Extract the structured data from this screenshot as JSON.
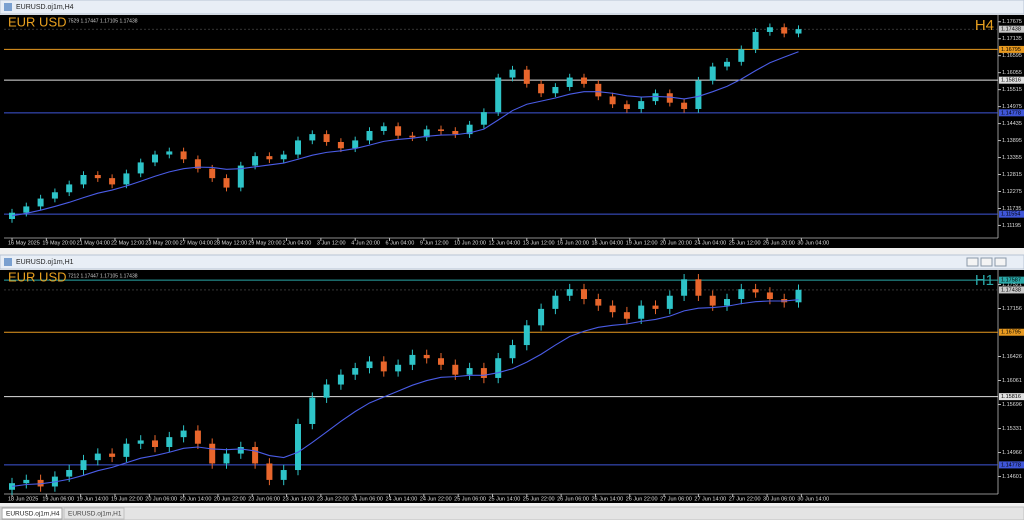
{
  "tabs": [
    "EURUSD.oj1m,H4",
    "EURUSD.oj1m,H1"
  ],
  "chart_data": [
    {
      "type": "candlestick",
      "window_title": "EURUSD.oj1m,H4",
      "symbol": "EUR USD",
      "timeframe": "H4",
      "timeframe_color": "#e8a020",
      "info": "7529 1.17447 1.17105 1.17438",
      "up_color": "#2ec4c8",
      "down_color": "#e8662c",
      "ma_color": "#4a5ce6",
      "ylim": [
        1.10859,
        1.17858
      ],
      "yticks": [
        1.17675,
        1.17135,
        1.16595,
        1.16055,
        1.15515,
        1.14975,
        1.14435,
        1.13895,
        1.13355,
        1.12815,
        1.12275,
        1.11735,
        1.11195
      ],
      "current": 1.17438,
      "levels": [
        {
          "value": 1.16795,
          "color": "#e89a20"
        },
        {
          "value": 1.15816,
          "color": "#e0e0e0"
        },
        {
          "value": 1.14778,
          "color": "#3f56d8"
        },
        {
          "value": 1.11554,
          "color": "#3f56d8"
        }
      ],
      "xticks": [
        {
          "value": 0,
          "label": "16 May 2025"
        },
        {
          "value": 2.4,
          "label": "19 May 20:00"
        },
        {
          "value": 4.8,
          "label": "21 May 04:00"
        },
        {
          "value": 7.2,
          "label": "22 May 12:00"
        },
        {
          "value": 9.6,
          "label": "23 May 20:00"
        },
        {
          "value": 12,
          "label": "27 May 04:00"
        },
        {
          "value": 14.4,
          "label": "28 May 12:00"
        },
        {
          "value": 16.8,
          "label": "29 May 20:00"
        },
        {
          "value": 19.2,
          "label": "2 Jun 04:00"
        },
        {
          "value": 21.6,
          "label": "3 Jun 12:00"
        },
        {
          "value": 24,
          "label": "4 Jun 20:00"
        },
        {
          "value": 26.4,
          "label": "6 Jun 04:00"
        },
        {
          "value": 28.8,
          "label": "9 Jun 12:00"
        },
        {
          "value": 31.2,
          "label": "10 Jun 20:00"
        },
        {
          "value": 33.6,
          "label": "12 Jun 04:00"
        },
        {
          "value": 36,
          "label": "13 Jun 12:00"
        },
        {
          "value": 38.4,
          "label": "16 Jun 20:00"
        },
        {
          "value": 40.8,
          "label": "18 Jun 04:00"
        },
        {
          "value": 43.2,
          "label": "19 Jun 12:00"
        },
        {
          "value": 45.6,
          "label": "20 Jun 20:00"
        },
        {
          "value": 48,
          "label": "24 Jun 04:00"
        },
        {
          "value": 50.4,
          "label": "25 Jun 12:00"
        },
        {
          "value": 52.8,
          "label": "26 Jun 20:00"
        },
        {
          "value": 55.2,
          "label": "30 Jun 04:00"
        }
      ],
      "ohlc": [
        [
          1.114,
          1.1172,
          1.1128,
          1.116
        ],
        [
          1.116,
          1.1192,
          1.1148,
          1.118
        ],
        [
          1.118,
          1.1217,
          1.1168,
          1.1205
        ],
        [
          1.1205,
          1.1237,
          1.1193,
          1.1225
        ],
        [
          1.1225,
          1.1262,
          1.1213,
          1.125
        ],
        [
          1.125,
          1.1292,
          1.1238,
          1.128
        ],
        [
          1.128,
          1.1292,
          1.1258,
          1.127
        ],
        [
          1.127,
          1.1282,
          1.1238,
          1.125
        ],
        [
          1.125,
          1.1297,
          1.1238,
          1.1285
        ],
        [
          1.1285,
          1.1332,
          1.1273,
          1.132
        ],
        [
          1.132,
          1.1357,
          1.1308,
          1.1345
        ],
        [
          1.1345,
          1.1367,
          1.1333,
          1.1355
        ],
        [
          1.1355,
          1.1367,
          1.1318,
          1.133
        ],
        [
          1.133,
          1.1342,
          1.1288,
          1.13
        ],
        [
          1.13,
          1.1312,
          1.1258,
          1.127
        ],
        [
          1.127,
          1.1282,
          1.1228,
          1.124
        ],
        [
          1.124,
          1.1322,
          1.1228,
          1.131
        ],
        [
          1.131,
          1.1352,
          1.1298,
          1.134
        ],
        [
          1.134,
          1.1352,
          1.1318,
          1.133
        ],
        [
          1.133,
          1.1357,
          1.1318,
          1.1345
        ],
        [
          1.1345,
          1.1402,
          1.1333,
          1.139
        ],
        [
          1.139,
          1.1422,
          1.1378,
          1.141
        ],
        [
          1.141,
          1.1422,
          1.1373,
          1.1385
        ],
        [
          1.1385,
          1.1397,
          1.1353,
          1.1365
        ],
        [
          1.1365,
          1.1402,
          1.1353,
          1.139
        ],
        [
          1.139,
          1.1432,
          1.1378,
          1.142
        ],
        [
          1.142,
          1.1447,
          1.1408,
          1.1435
        ],
        [
          1.1435,
          1.1447,
          1.1393,
          1.1405
        ],
        [
          1.1405,
          1.1417,
          1.1388,
          1.14
        ],
        [
          1.14,
          1.1437,
          1.1388,
          1.1425
        ],
        [
          1.1425,
          1.1437,
          1.1408,
          1.142
        ],
        [
          1.142,
          1.1432,
          1.1398,
          1.141
        ],
        [
          1.141,
          1.1452,
          1.1398,
          1.144
        ],
        [
          1.144,
          1.1492,
          1.1428,
          1.148
        ],
        [
          1.148,
          1.1602,
          1.1468,
          1.159
        ],
        [
          1.159,
          1.1627,
          1.1578,
          1.1615
        ],
        [
          1.1615,
          1.1627,
          1.1558,
          1.157
        ],
        [
          1.157,
          1.1582,
          1.1528,
          1.154
        ],
        [
          1.154,
          1.1572,
          1.1528,
          1.156
        ],
        [
          1.156,
          1.1602,
          1.1548,
          1.159
        ],
        [
          1.159,
          1.1602,
          1.1558,
          1.157
        ],
        [
          1.157,
          1.1582,
          1.1518,
          1.153
        ],
        [
          1.153,
          1.1542,
          1.1493,
          1.1505
        ],
        [
          1.1505,
          1.1517,
          1.1478,
          1.149
        ],
        [
          1.149,
          1.1527,
          1.1478,
          1.1515
        ],
        [
          1.1515,
          1.1552,
          1.1503,
          1.154
        ],
        [
          1.154,
          1.1552,
          1.1498,
          1.151
        ],
        [
          1.151,
          1.1522,
          1.1478,
          1.149
        ],
        [
          1.149,
          1.1592,
          1.1478,
          1.158
        ],
        [
          1.158,
          1.1637,
          1.1568,
          1.1625
        ],
        [
          1.1625,
          1.1652,
          1.1613,
          1.164
        ],
        [
          1.164,
          1.1692,
          1.1628,
          1.168
        ],
        [
          1.168,
          1.1747,
          1.1668,
          1.1735
        ],
        [
          1.1735,
          1.1762,
          1.1723,
          1.175
        ],
        [
          1.175,
          1.1762,
          1.1718,
          1.173
        ],
        [
          1.173,
          1.1756,
          1.1718,
          1.1744
        ]
      ],
      "ma": [
        1.115,
        1.1158,
        1.1168,
        1.118,
        1.1193,
        1.1208,
        1.1222,
        1.1232,
        1.1245,
        1.126,
        1.1276,
        1.129,
        1.13,
        1.1305,
        1.1304,
        1.1298,
        1.13,
        1.1306,
        1.1312,
        1.1318,
        1.133,
        1.1343,
        1.1352,
        1.1357,
        1.1364,
        1.1375,
        1.1387,
        1.1393,
        1.1397,
        1.1403,
        1.1407,
        1.1408,
        1.1414,
        1.1426,
        1.1455,
        1.1485,
        1.1505,
        1.1515,
        1.1525,
        1.1537,
        1.1545,
        1.1545,
        1.154,
        1.1532,
        1.1528,
        1.153,
        1.1528,
        1.1522,
        1.153,
        1.1545,
        1.1562,
        1.1585,
        1.1612,
        1.1637,
        1.1655,
        1.1672
      ]
    },
    {
      "type": "candlestick",
      "window_title": "EURUSD.oj1m,H1",
      "symbol": "EUR USD",
      "timeframe": "H1",
      "timeframe_color": "#2aa7a7",
      "info": "7212 1.17447 1.17105 1.17438",
      "up_color": "#2ec4c8",
      "down_color": "#e8662c",
      "ma_color": "#4a5ce6",
      "ylim": [
        1.14366,
        1.17726
      ],
      "yticks": [
        1.17521,
        1.17156,
        1.16426,
        1.16061,
        1.15696,
        1.15331,
        1.14966,
        1.14601
      ],
      "current": 1.17438,
      "levels": [
        {
          "value": 1.17587,
          "color": "#2aa7a7"
        },
        {
          "value": 1.16795,
          "color": "#e89a20"
        },
        {
          "value": 1.15816,
          "color": "#e0e0e0"
        },
        {
          "value": 1.14778,
          "color": "#3f56d8"
        }
      ],
      "xticks": [
        {
          "value": 0,
          "label": "18 Jun 2025"
        },
        {
          "value": 2.4,
          "label": "19 Jun 06:00"
        },
        {
          "value": 4.8,
          "label": "19 Jun 14:00"
        },
        {
          "value": 7.2,
          "label": "19 Jun 22:00"
        },
        {
          "value": 9.6,
          "label": "20 Jun 06:00"
        },
        {
          "value": 12,
          "label": "20 Jun 14:00"
        },
        {
          "value": 14.4,
          "label": "20 Jun 22:00"
        },
        {
          "value": 16.8,
          "label": "23 Jun 06:00"
        },
        {
          "value": 19.2,
          "label": "23 Jun 14:00"
        },
        {
          "value": 21.6,
          "label": "23 Jun 22:00"
        },
        {
          "value": 24,
          "label": "24 Jun 06:00"
        },
        {
          "value": 26.4,
          "label": "24 Jun 14:00"
        },
        {
          "value": 28.8,
          "label": "24 Jun 22:00"
        },
        {
          "value": 31.2,
          "label": "25 Jun 06:00"
        },
        {
          "value": 33.6,
          "label": "25 Jun 14:00"
        },
        {
          "value": 36,
          "label": "25 Jun 22:00"
        },
        {
          "value": 38.4,
          "label": "26 Jun 06:00"
        },
        {
          "value": 40.8,
          "label": "26 Jun 14:00"
        },
        {
          "value": 43.2,
          "label": "26 Jun 22:00"
        },
        {
          "value": 45.6,
          "label": "27 Jun 06:00"
        },
        {
          "value": 48,
          "label": "27 Jun 14:00"
        },
        {
          "value": 50.4,
          "label": "27 Jun 22:00"
        },
        {
          "value": 52.8,
          "label": "30 Jun 06:00"
        },
        {
          "value": 55.2,
          "label": "30 Jun 14:00"
        }
      ],
      "ohlc": [
        [
          1.144,
          1.1458,
          1.1432,
          1.145
        ],
        [
          1.145,
          1.1463,
          1.1442,
          1.1455
        ],
        [
          1.1455,
          1.1463,
          1.1437,
          1.1445
        ],
        [
          1.1445,
          1.1468,
          1.1437,
          1.146
        ],
        [
          1.146,
          1.1478,
          1.1452,
          1.147
        ],
        [
          1.147,
          1.1493,
          1.1462,
          1.1485
        ],
        [
          1.1485,
          1.1503,
          1.1477,
          1.1495
        ],
        [
          1.1495,
          1.1503,
          1.1482,
          1.149
        ],
        [
          1.149,
          1.1518,
          1.1482,
          1.151
        ],
        [
          1.151,
          1.1523,
          1.1502,
          1.1515
        ],
        [
          1.1515,
          1.1523,
          1.1497,
          1.1505
        ],
        [
          1.1505,
          1.1528,
          1.1497,
          1.152
        ],
        [
          1.152,
          1.1538,
          1.1512,
          1.153
        ],
        [
          1.153,
          1.1538,
          1.1502,
          1.151
        ],
        [
          1.151,
          1.1518,
          1.1472,
          1.148
        ],
        [
          1.148,
          1.1503,
          1.1472,
          1.1495
        ],
        [
          1.1495,
          1.1513,
          1.1487,
          1.1505
        ],
        [
          1.1505,
          1.1513,
          1.1472,
          1.148
        ],
        [
          1.148,
          1.1488,
          1.1447,
          1.1455
        ],
        [
          1.1455,
          1.1478,
          1.1447,
          1.147
        ],
        [
          1.147,
          1.1548,
          1.1462,
          1.154
        ],
        [
          1.154,
          1.1588,
          1.1532,
          1.158
        ],
        [
          1.158,
          1.1608,
          1.1572,
          1.16
        ],
        [
          1.16,
          1.1623,
          1.1592,
          1.1615
        ],
        [
          1.1615,
          1.1633,
          1.1607,
          1.1625
        ],
        [
          1.1625,
          1.1643,
          1.1617,
          1.1635
        ],
        [
          1.1635,
          1.1643,
          1.1612,
          1.162
        ],
        [
          1.162,
          1.1638,
          1.1612,
          1.163
        ],
        [
          1.163,
          1.1653,
          1.1622,
          1.1645
        ],
        [
          1.1645,
          1.1653,
          1.1632,
          1.164
        ],
        [
          1.164,
          1.1648,
          1.1622,
          1.163
        ],
        [
          1.163,
          1.1638,
          1.1607,
          1.1615
        ],
        [
          1.1615,
          1.1633,
          1.1607,
          1.1625
        ],
        [
          1.1625,
          1.1633,
          1.1602,
          1.161
        ],
        [
          1.161,
          1.1648,
          1.1602,
          1.164
        ],
        [
          1.164,
          1.1668,
          1.1632,
          1.166
        ],
        [
          1.166,
          1.1698,
          1.1652,
          1.169
        ],
        [
          1.169,
          1.1723,
          1.1682,
          1.1715
        ],
        [
          1.1715,
          1.1743,
          1.1707,
          1.1735
        ],
        [
          1.1735,
          1.1753,
          1.1727,
          1.1745
        ],
        [
          1.1745,
          1.1753,
          1.1722,
          1.173
        ],
        [
          1.173,
          1.1738,
          1.1712,
          1.172
        ],
        [
          1.172,
          1.1728,
          1.1702,
          1.171
        ],
        [
          1.171,
          1.1718,
          1.1692,
          1.17
        ],
        [
          1.17,
          1.1728,
          1.1692,
          1.172
        ],
        [
          1.172,
          1.1728,
          1.1707,
          1.1715
        ],
        [
          1.1715,
          1.1743,
          1.1707,
          1.1735
        ],
        [
          1.1735,
          1.1768,
          1.1727,
          1.176
        ],
        [
          1.176,
          1.1768,
          1.1727,
          1.1735
        ],
        [
          1.1735,
          1.1743,
          1.1712,
          1.172
        ],
        [
          1.172,
          1.1738,
          1.1712,
          1.173
        ],
        [
          1.173,
          1.1753,
          1.1722,
          1.1745
        ],
        [
          1.1745,
          1.1753,
          1.1732,
          1.174
        ],
        [
          1.174,
          1.1748,
          1.1722,
          1.173
        ],
        [
          1.173,
          1.1738,
          1.1717,
          1.1725
        ],
        [
          1.1725,
          1.1752,
          1.1717,
          1.1744
        ]
      ],
      "ma": [
        1.1445,
        1.1448,
        1.1449,
        1.1452,
        1.1456,
        1.1462,
        1.1469,
        1.1474,
        1.1481,
        1.1488,
        1.1492,
        1.1497,
        1.1503,
        1.1505,
        1.1502,
        1.1501,
        1.1502,
        1.1499,
        1.1492,
        1.1489,
        1.1497,
        1.1512,
        1.1528,
        1.1544,
        1.1559,
        1.1572,
        1.1581,
        1.159,
        1.1599,
        1.1606,
        1.1611,
        1.1612,
        1.1614,
        1.1614,
        1.1618,
        1.1624,
        1.1634,
        1.1646,
        1.166,
        1.1673,
        1.1681,
        1.1687,
        1.169,
        1.1692,
        1.1696,
        1.1699,
        1.1704,
        1.1712,
        1.1716,
        1.1717,
        1.1719,
        1.1723,
        1.1726,
        1.1727,
        1.1727,
        1.1729
      ]
    }
  ]
}
